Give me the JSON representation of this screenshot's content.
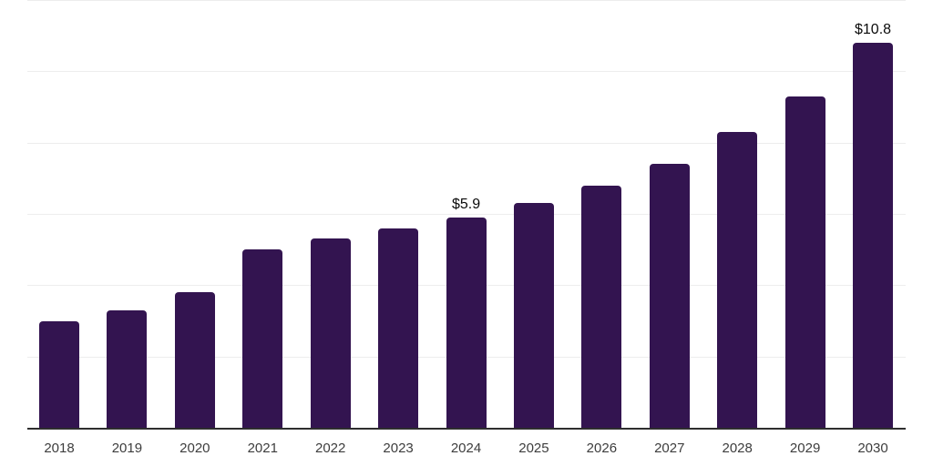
{
  "chart_data": {
    "type": "bar",
    "title": "",
    "xlabel": "",
    "ylabel": "",
    "categories": [
      "2018",
      "2019",
      "2020",
      "2021",
      "2022",
      "2023",
      "2024",
      "2025",
      "2026",
      "2027",
      "2028",
      "2029",
      "2030"
    ],
    "values": [
      3.0,
      3.3,
      3.8,
      5.0,
      5.3,
      5.6,
      5.9,
      6.3,
      6.8,
      7.4,
      8.3,
      9.3,
      10.8
    ],
    "data_labels": [
      {
        "category": "2024",
        "text": "$5.9"
      },
      {
        "category": "2030",
        "text": "$10.8"
      }
    ],
    "ylim": [
      0,
      12
    ],
    "gridline_step": 2,
    "grid": true,
    "legend": "none",
    "value_unit_prefix": "$"
  },
  "colors": {
    "bar": "#331450",
    "axis_line": "#2e2e2e",
    "gridline": "#ededed",
    "tick_label": "#3d3d3d",
    "data_label": "#0a0a0a",
    "background": "#ffffff"
  }
}
